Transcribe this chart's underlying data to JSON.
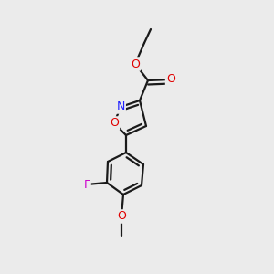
{
  "background_color": "#ebebeb",
  "bond_color": "#1a1a1a",
  "atom_colors": {
    "O": "#e00000",
    "N": "#2020ff",
    "F": "#cc00cc",
    "C": "#1a1a1a"
  },
  "bond_width": 1.6,
  "font_size": 8.5,
  "figsize": [
    3.0,
    3.0
  ],
  "dpi": 100
}
